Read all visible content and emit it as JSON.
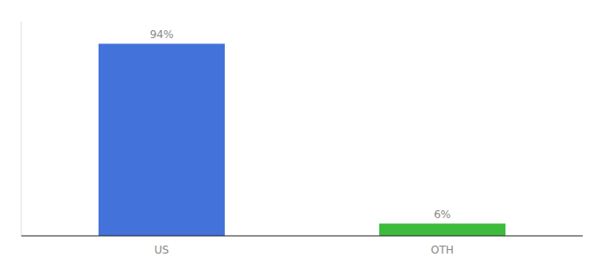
{
  "chart_data": {
    "type": "bar",
    "categories": [
      "US",
      "OTH"
    ],
    "values": [
      94,
      6
    ],
    "value_labels": [
      "94%",
      "6%"
    ],
    "colors": [
      "#4472db",
      "#3dbb3d"
    ],
    "ylim": [
      0,
      105
    ],
    "data_labels": true,
    "tick_labels": "x"
  }
}
